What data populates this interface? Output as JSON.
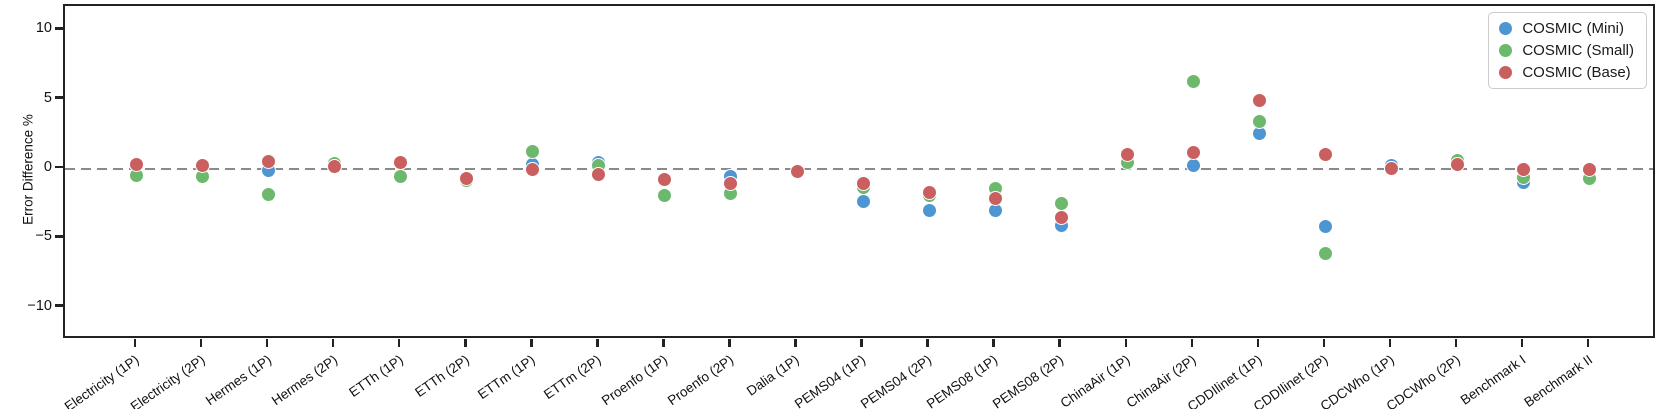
{
  "figure": {
    "background": "#ffffff",
    "spine_color": "#222222",
    "zero_line_color": "#8a8a8a",
    "text_color": "#1a1a1a"
  },
  "legend": {
    "position": "upper right",
    "items": [
      {
        "label": "COSMIC (Mini)",
        "color": "#4d96d2"
      },
      {
        "label": "COSMIC (Small)",
        "color": "#6cb96e"
      },
      {
        "label": "COSMIC (Base)",
        "color": "#c95f5f"
      }
    ]
  },
  "chart_data": {
    "type": "scatter",
    "title": "",
    "xlabel": "",
    "ylabel": "Error Difference %",
    "ylim": [
      -12.33,
      11.75
    ],
    "yticks": [
      {
        "value": 10,
        "label": "10"
      },
      {
        "value": 5,
        "label": "5"
      },
      {
        "value": 0,
        "label": "0"
      },
      {
        "value": -5,
        "label": "−5"
      },
      {
        "value": -10,
        "label": "−10"
      }
    ],
    "grid": false,
    "zero_line": {
      "style": "dashed",
      "y": 0
    },
    "legend_position": "upper right",
    "categories": [
      "Electricity (1P)",
      "Electricity (2P)",
      "Hermes (1P)",
      "Hermes (2P)",
      "ETTh (1P)",
      "ETTh (2P)",
      "ETTm (1P)",
      "ETTm (2P)",
      "Proenfo (1P)",
      "Proenfo (2P)",
      "Dalia (1P)",
      "PEMS04 (1P)",
      "PEMS04 (2P)",
      "PEMS08 (1P)",
      "PEMS08 (2P)",
      "ChinaAir (1P)",
      "ChinaAir (2P)",
      "CDDIlinet (1P)",
      "CDDIlinet (2P)",
      "CDCWho (1P)",
      "CDCWho (2P)",
      "Benchmark I",
      "Benchmark II"
    ],
    "series": [
      {
        "name": "COSMIC (Mini)",
        "color": "#4d96d2",
        "values": [
          0.3,
          0.2,
          -0.15,
          0.15,
          0.4,
          -0.7,
          0.3,
          0.4,
          -0.8,
          -0.6,
          -0.2,
          -2.35,
          -3.0,
          -3.05,
          -4.1,
          1.0,
          0.2,
          2.5,
          -4.2,
          0.2,
          0.3,
          -1.0,
          -0.1
        ]
      },
      {
        "name": "COSMIC (Small)",
        "color": "#6cb96e",
        "values": [
          -0.5,
          -0.55,
          -1.85,
          0.35,
          -0.6,
          -0.85,
          1.2,
          0.25,
          -1.95,
          -1.8,
          -0.2,
          -1.35,
          -1.95,
          -1.45,
          -2.5,
          0.45,
          6.3,
          3.4,
          -6.1,
          0.0,
          0.55,
          -0.65,
          -0.7
        ]
      },
      {
        "name": "COSMIC (Base)",
        "color": "#c95f5f",
        "values": [
          0.3,
          0.2,
          0.5,
          0.15,
          0.4,
          -0.7,
          -0.05,
          -0.45,
          -0.8,
          -1.05,
          -0.2,
          -1.1,
          -1.7,
          -2.15,
          -3.5,
          1.0,
          1.15,
          4.9,
          1.0,
          0.0,
          0.3,
          -0.1,
          -0.1
        ]
      }
    ]
  }
}
